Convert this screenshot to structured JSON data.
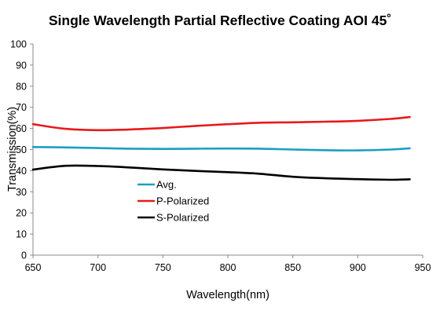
{
  "chart_data": {
    "type": "line",
    "title": "Single Wavelength Partial Reflective Coating AOI 45˚",
    "xlabel": "Wavelength(nm)",
    "ylabel": "Transmission(%)",
    "xlim": [
      650,
      950
    ],
    "ylim": [
      0,
      100
    ],
    "xticks": [
      650,
      700,
      750,
      800,
      850,
      900,
      950
    ],
    "yticks": [
      0,
      10,
      20,
      30,
      40,
      50,
      60,
      70,
      80,
      90,
      100
    ],
    "grid": false,
    "legend_position": "center-left",
    "series": [
      {
        "name": "Avg.",
        "color": "#1a9fc0",
        "x": [
          650,
          675,
          700,
          725,
          750,
          775,
          800,
          825,
          850,
          875,
          900,
          925,
          940
        ],
        "y": [
          51.2,
          51.0,
          50.7,
          50.4,
          50.3,
          50.4,
          50.5,
          50.4,
          50.0,
          49.7,
          49.6,
          50.0,
          50.6
        ]
      },
      {
        "name": "P-Polarized",
        "color": "#e8191b",
        "x": [
          650,
          675,
          700,
          725,
          750,
          775,
          800,
          825,
          850,
          875,
          900,
          925,
          940
        ],
        "y": [
          62.0,
          59.8,
          59.2,
          59.5,
          60.2,
          61.2,
          62.0,
          62.7,
          62.9,
          63.2,
          63.6,
          64.5,
          65.4
        ]
      },
      {
        "name": "S-Polarized",
        "color": "#000000",
        "x": [
          650,
          675,
          700,
          725,
          750,
          775,
          800,
          825,
          850,
          875,
          900,
          925,
          940
        ],
        "y": [
          40.5,
          42.3,
          42.2,
          41.5,
          40.6,
          39.9,
          39.3,
          38.5,
          37.1,
          36.4,
          36.0,
          35.7,
          35.9
        ]
      }
    ]
  }
}
